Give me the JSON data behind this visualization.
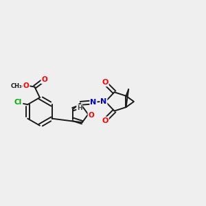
{
  "background_color": "#efefef",
  "bond_color": "#1a1a1a",
  "atom_colors": {
    "O": "#ff0000",
    "N": "#0000cc",
    "Cl": "#00aa00",
    "C": "#1a1a1a",
    "H": "#444444"
  },
  "figsize": [
    3.0,
    3.0
  ],
  "dpi": 100,
  "xlim": [
    0,
    12
  ],
  "ylim": [
    0,
    12
  ]
}
